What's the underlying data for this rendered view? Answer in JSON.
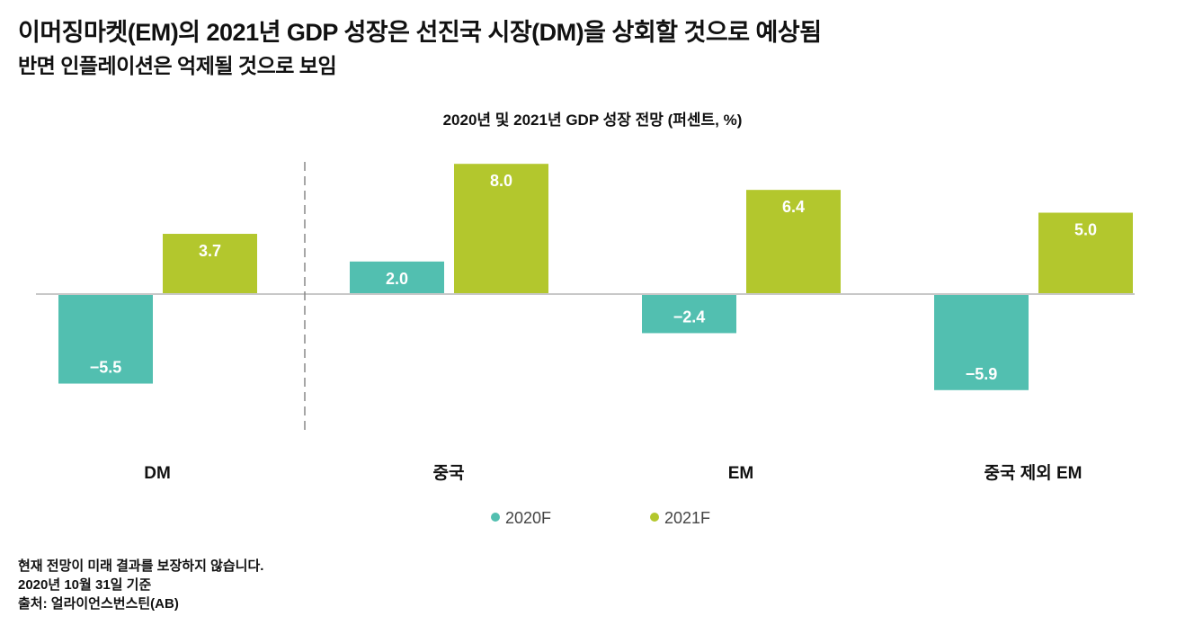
{
  "title": "이머징마켓(EM)의 2021년 GDP 성장은 선진국 시장(DM)을 상회할 것으로 예상됨",
  "subtitle": "반면 인플레이션은 억제될 것으로 보임",
  "colors": {
    "2020F": "#52bfb0",
    "2021F": "#b3c72d"
  },
  "chart_data": {
    "type": "bar",
    "title": "2020년 및 2021년 GDP 성장 전망 (퍼센트, %)",
    "categories": [
      "DM",
      "중국",
      "EM",
      "중국 제외 EM"
    ],
    "series": [
      {
        "name": "2020F",
        "values": [
          -5.5,
          2.0,
          -2.4,
          -5.9
        ],
        "labels": [
          "−5.5",
          "2.0",
          "−2.4",
          "−5.9"
        ]
      },
      {
        "name": "2021F",
        "values": [
          3.7,
          8.0,
          6.4,
          5.0
        ],
        "labels": [
          "3.7",
          "8.0",
          "6.4",
          "5.0"
        ]
      }
    ],
    "legend": "bottom-center",
    "grid": false,
    "divider_after_category": "DM"
  },
  "notes": [
    "현재 전망이 미래 결과를 보장하지 않습니다.",
    "2020년 10월 31일 기준",
    "출처: 얼라이언스번스틴(AB)"
  ]
}
